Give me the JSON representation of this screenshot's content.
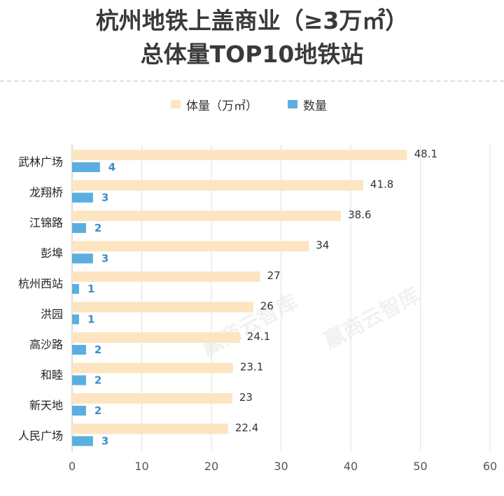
{
  "title": {
    "line1": "杭州地铁上盖商业（≥3万㎡）",
    "line2": "总体量TOP10地铁站"
  },
  "watermark": "赢商云智库",
  "colors": {
    "volume": "#fde5c2",
    "count": "#5aaee0",
    "count_text": "#3a8fc8",
    "grid": "#e0e0e0"
  },
  "chart_data": {
    "type": "bar",
    "orientation": "horizontal",
    "categories": [
      "武林广场",
      "龙翔桥",
      "江锦路",
      "彭埠",
      "杭州西站",
      "洪园",
      "高沙路",
      "和睦",
      "新天地",
      "人民广场"
    ],
    "series": [
      {
        "name": "体量（万㎡）",
        "values": [
          48.1,
          41.8,
          38.6,
          34,
          27,
          26,
          24.1,
          23.1,
          23,
          22.4
        ],
        "labels": [
          "48.1",
          "41.8",
          "38.6",
          "34",
          "27",
          "26",
          "24.1",
          "23.1",
          "23",
          "22.4"
        ]
      },
      {
        "name": "数量",
        "values": [
          4,
          3,
          2,
          3,
          1,
          1,
          2,
          2,
          2,
          3
        ],
        "labels": [
          "4",
          "3",
          "2",
          "3",
          "1",
          "1",
          "2",
          "2",
          "2",
          "3"
        ]
      }
    ],
    "xlim": [
      0,
      60
    ],
    "xticks": [
      0,
      10,
      20,
      30,
      40,
      50,
      60
    ],
    "xtick_labels": [
      "0",
      "10",
      "20",
      "30",
      "40",
      "50",
      "60"
    ],
    "grid": true,
    "legend_position": "top-center"
  }
}
